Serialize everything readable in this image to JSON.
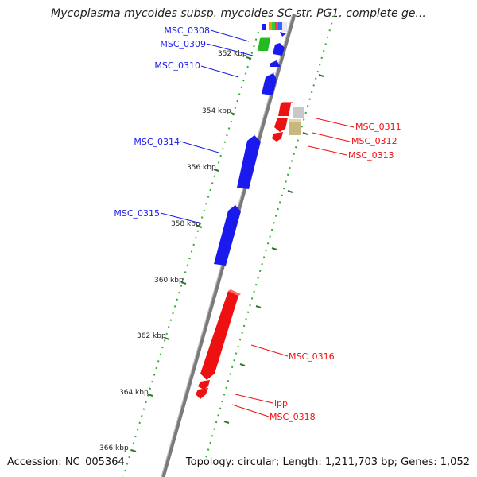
{
  "title": "Mycoplasma mycoides subsp. mycoides SC str. PG1, complete ge...",
  "accession": "Accession: NC_005364",
  "topology": "Topology: circular; Length: 1,211,703 bp; Genes: 1,052",
  "colors": {
    "forward": "#1010ee",
    "reverse": "#ee1111",
    "backbone": "#888888",
    "ticks": "#228822"
  },
  "tick_labels": [
    "352 kbp",
    "354 kbp",
    "356 kbp",
    "358 kbp",
    "360 kbp",
    "362 kbp",
    "364 kbp",
    "366 kbp"
  ],
  "genes": [
    {
      "name": "MSC_0308",
      "strand": "forward"
    },
    {
      "name": "MSC_0309",
      "strand": "forward"
    },
    {
      "name": "MSC_0310",
      "strand": "forward"
    },
    {
      "name": "MSC_0314",
      "strand": "forward"
    },
    {
      "name": "MSC_0315",
      "strand": "forward"
    },
    {
      "name": "MSC_0311",
      "strand": "reverse"
    },
    {
      "name": "MSC_0312",
      "strand": "reverse"
    },
    {
      "name": "MSC_0313",
      "strand": "reverse"
    },
    {
      "name": "MSC_0316",
      "strand": "reverse"
    },
    {
      "name": "lpp",
      "strand": "reverse"
    },
    {
      "name": "MSC_0318",
      "strand": "reverse"
    }
  ]
}
